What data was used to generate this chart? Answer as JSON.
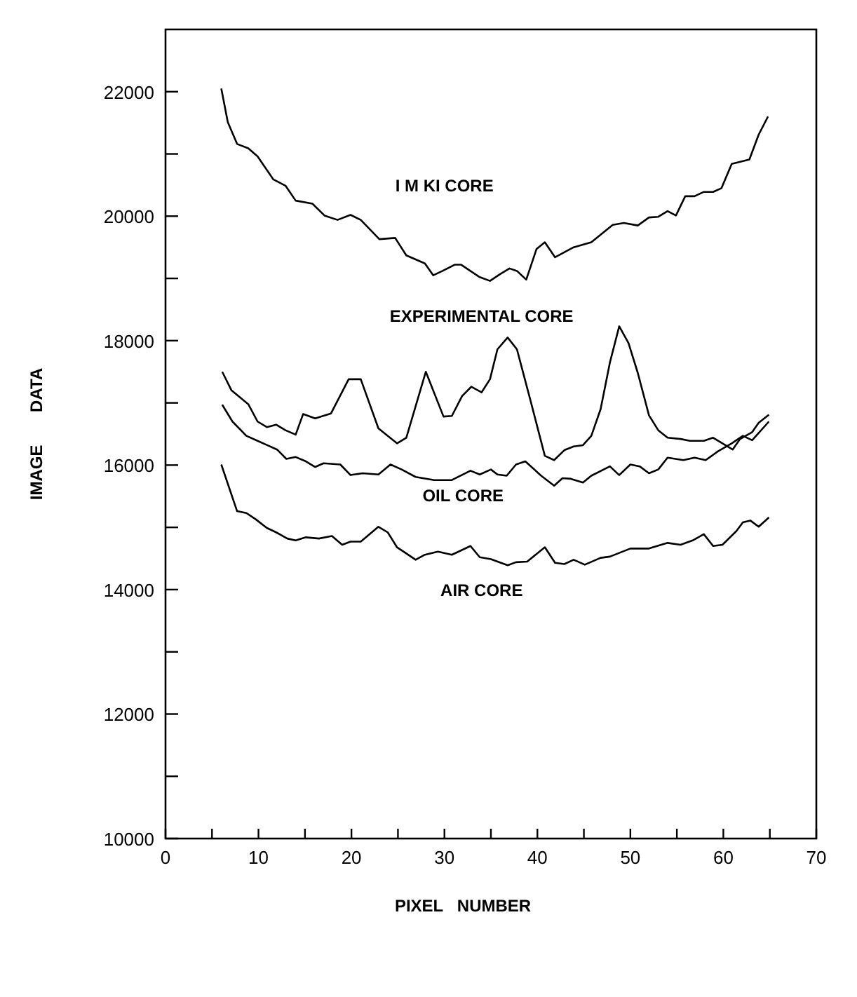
{
  "chart_data": {
    "type": "line",
    "xlabel": "PIXEL   NUMBER",
    "ylabel": "IMAGE       DATA",
    "xlim": [
      0,
      70
    ],
    "ylim": [
      10000,
      23000
    ],
    "xticks": [
      0,
      {
        "value": 5,
        "label": null
      },
      10,
      {
        "value": 15,
        "label": null
      },
      20,
      {
        "value": 25,
        "label": null
      },
      30,
      {
        "value": 35,
        "label": null
      },
      40,
      {
        "value": 45,
        "label": null
      },
      50,
      {
        "value": 55,
        "label": null
      },
      60,
      {
        "value": 65,
        "label": null
      },
      70
    ],
    "yticks": [
      10000,
      {
        "value": 11000,
        "label": null
      },
      12000,
      {
        "value": 13000,
        "label": null
      },
      14000,
      {
        "value": 15000,
        "label": null
      },
      16000,
      {
        "value": 17000,
        "label": null
      },
      18000,
      {
        "value": 19000,
        "label": null
      },
      20000,
      {
        "value": 21000,
        "label": null
      },
      22000
    ],
    "grid": false,
    "marker": "none",
    "line_style": "solid",
    "series": [
      {
        "name": "I M KI CORE",
        "color": "#000000",
        "x": [
          6,
          6.7,
          7.7,
          8.9,
          9.9,
          11.6,
          12.9,
          14,
          15.8,
          17.1,
          18.5,
          19.9,
          21,
          23,
          24.7,
          25.9,
          27.9,
          28.8,
          29.8,
          31.1,
          31.8,
          33.8,
          34.9,
          36,
          37,
          37.8,
          38.8,
          39.9,
          40.8,
          41.9,
          43.9,
          45.8,
          48.1,
          49.3,
          50.8,
          52,
          53,
          54,
          54.9,
          55.9,
          56.9,
          57.9,
          58.9,
          59.8,
          60.9,
          62.8,
          63.8,
          64.8
        ],
        "values": [
          22050,
          21510,
          21160,
          21090,
          20960,
          20590,
          20490,
          20250,
          20200,
          20010,
          19940,
          20020,
          19940,
          19630,
          19650,
          19370,
          19240,
          19050,
          19120,
          19220,
          19220,
          19020,
          18960,
          19070,
          19160,
          19120,
          18980,
          19470,
          19580,
          19340,
          19500,
          19580,
          19860,
          19890,
          19850,
          19980,
          19990,
          20080,
          20010,
          20320,
          20320,
          20390,
          20390,
          20450,
          20840,
          20910,
          21310,
          21600
        ]
      },
      {
        "name": "EXPERIMENTAL CORE",
        "color": "#000000",
        "x": [
          6.1,
          7.1,
          8.9,
          9.9,
          10.9,
          11.9,
          12.9,
          14,
          14.8,
          16.1,
          17.8,
          19.7,
          21,
          22.9,
          24.9,
          25.9,
          28,
          29.9,
          30.8,
          31.9,
          32.9,
          34,
          34.9,
          35.7,
          36.8,
          37.8,
          39.2,
          40.8,
          41.8,
          42.9,
          43.9,
          44.9,
          45.8,
          46.8,
          47.8,
          48.8,
          49.8,
          50.8,
          52,
          53,
          54,
          55.4,
          56.4,
          57.9,
          58.9,
          59.9,
          61,
          61.8,
          63.1,
          63.8,
          64.9
        ],
        "values": [
          17500,
          17200,
          16980,
          16700,
          16610,
          16650,
          16560,
          16490,
          16820,
          16750,
          16830,
          17380,
          17380,
          16590,
          16350,
          16440,
          17500,
          16780,
          16790,
          17110,
          17260,
          17170,
          17380,
          17860,
          18050,
          17860,
          17070,
          16150,
          16080,
          16240,
          16300,
          16320,
          16470,
          16900,
          17650,
          18230,
          17960,
          17480,
          16800,
          16560,
          16440,
          16420,
          16390,
          16390,
          16440,
          16350,
          16250,
          16420,
          16530,
          16680,
          16810
        ]
      },
      {
        "name": "OIL CORE",
        "color": "#000000",
        "x": [
          6.1,
          7.2,
          8.7,
          9.9,
          11.1,
          12,
          13,
          14,
          15.1,
          16.1,
          17,
          18.8,
          19.9,
          21.2,
          22.9,
          24.2,
          25.4,
          26.9,
          28.9,
          30.8,
          32.8,
          33.8,
          35,
          35.7,
          36.7,
          37.7,
          38.7,
          40.4,
          41.8,
          42.7,
          43.6,
          44.9,
          45.8,
          47.8,
          48.8,
          50,
          51,
          52,
          53,
          54,
          55.7,
          56.9,
          58.1,
          59.4,
          60.9,
          62.1,
          63.1,
          64.9
        ],
        "values": [
          16970,
          16700,
          16470,
          16390,
          16310,
          16250,
          16100,
          16130,
          16060,
          15970,
          16030,
          16010,
          15840,
          15870,
          15850,
          16010,
          15930,
          15810,
          15760,
          15760,
          15910,
          15850,
          15930,
          15850,
          15830,
          16010,
          16060,
          15830,
          15670,
          15790,
          15780,
          15720,
          15830,
          15980,
          15840,
          16010,
          15980,
          15870,
          15930,
          16120,
          16080,
          16120,
          16080,
          16220,
          16350,
          16470,
          16400,
          16700
        ]
      },
      {
        "name": "AIR CORE",
        "color": "#000000",
        "x": [
          6,
          7.7,
          8.7,
          9.7,
          10.9,
          11.9,
          13.1,
          14,
          15.1,
          16.5,
          17.9,
          19,
          19.9,
          21,
          22.9,
          23.9,
          24.9,
          25.9,
          26.9,
          27.9,
          29.3,
          30.8,
          32.8,
          33.8,
          35,
          36.8,
          37.7,
          38.9,
          40.8,
          41.9,
          42.9,
          43.9,
          45.1,
          46.8,
          47.8,
          50,
          52,
          54,
          55.4,
          56.7,
          57.9,
          58.9,
          59.9,
          61.4,
          62.1,
          62.9,
          63.8,
          64.9
        ],
        "values": [
          16010,
          15260,
          15230,
          15130,
          14990,
          14920,
          14820,
          14790,
          14840,
          14820,
          14860,
          14720,
          14770,
          14770,
          15010,
          14920,
          14680,
          14580,
          14480,
          14560,
          14610,
          14560,
          14700,
          14520,
          14490,
          14390,
          14440,
          14450,
          14680,
          14430,
          14410,
          14480,
          14400,
          14510,
          14530,
          14660,
          14660,
          14750,
          14720,
          14790,
          14890,
          14700,
          14720,
          14940,
          15080,
          15110,
          15010,
          15160
        ]
      }
    ]
  }
}
